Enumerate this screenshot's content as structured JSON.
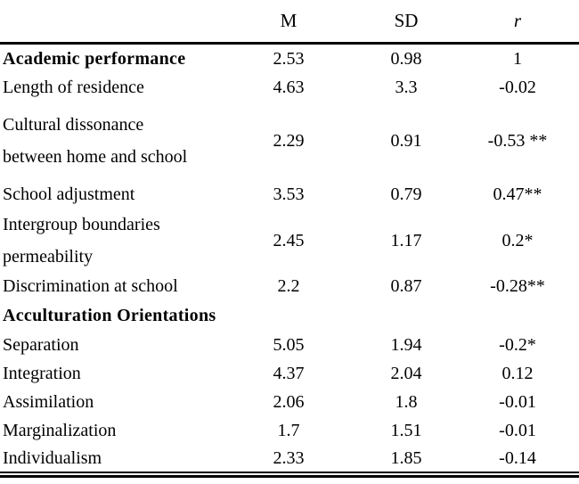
{
  "table": {
    "columns": [
      {
        "key": "label",
        "label": ""
      },
      {
        "key": "m",
        "label": "M"
      },
      {
        "key": "sd",
        "label": "SD"
      },
      {
        "key": "r",
        "label": "r"
      }
    ],
    "rows": [
      {
        "label": "Academic performance",
        "m": "2.53",
        "sd": "0.98",
        "r": "1",
        "bold": true
      },
      {
        "label": "Length of residence",
        "m": "4.63",
        "sd": "3.3",
        "r": "-0.02",
        "bold": false
      },
      {
        "label": "Cultural dissonance\nbetween home and school",
        "m": "2.29",
        "sd": "0.91",
        "r": "-0.53 **",
        "bold": false
      },
      {
        "label": "School adjustment",
        "m": "3.53",
        "sd": "0.79",
        "r": "0.47**",
        "bold": false
      },
      {
        "label": "Intergroup boundaries\npermeability",
        "m": "2.45",
        "sd": "1.17",
        "r": "0.2*",
        "bold": false
      },
      {
        "label": "Discrimination at school",
        "m": "2.2",
        "sd": "0.87",
        "r": "-0.28**",
        "bold": false
      },
      {
        "label": "Acculturation Orientations",
        "m": "",
        "sd": "",
        "r": "",
        "bold": true
      },
      {
        "label": "Separation",
        "m": "5.05",
        "sd": "1.94",
        "r": "-0.2*",
        "bold": false
      },
      {
        "label": "Integration",
        "m": "4.37",
        "sd": "2.04",
        "r": "0.12",
        "bold": false
      },
      {
        "label": "Assimilation",
        "m": "2.06",
        "sd": "1.8",
        "r": "-0.01",
        "bold": false
      },
      {
        "label": "Marginalization",
        "m": "1.7",
        "sd": "1.51",
        "r": "-0.01",
        "bold": false
      },
      {
        "label": "Individualism",
        "m": "2.33",
        "sd": "1.85",
        "r": "-0.14",
        "bold": false
      }
    ]
  }
}
